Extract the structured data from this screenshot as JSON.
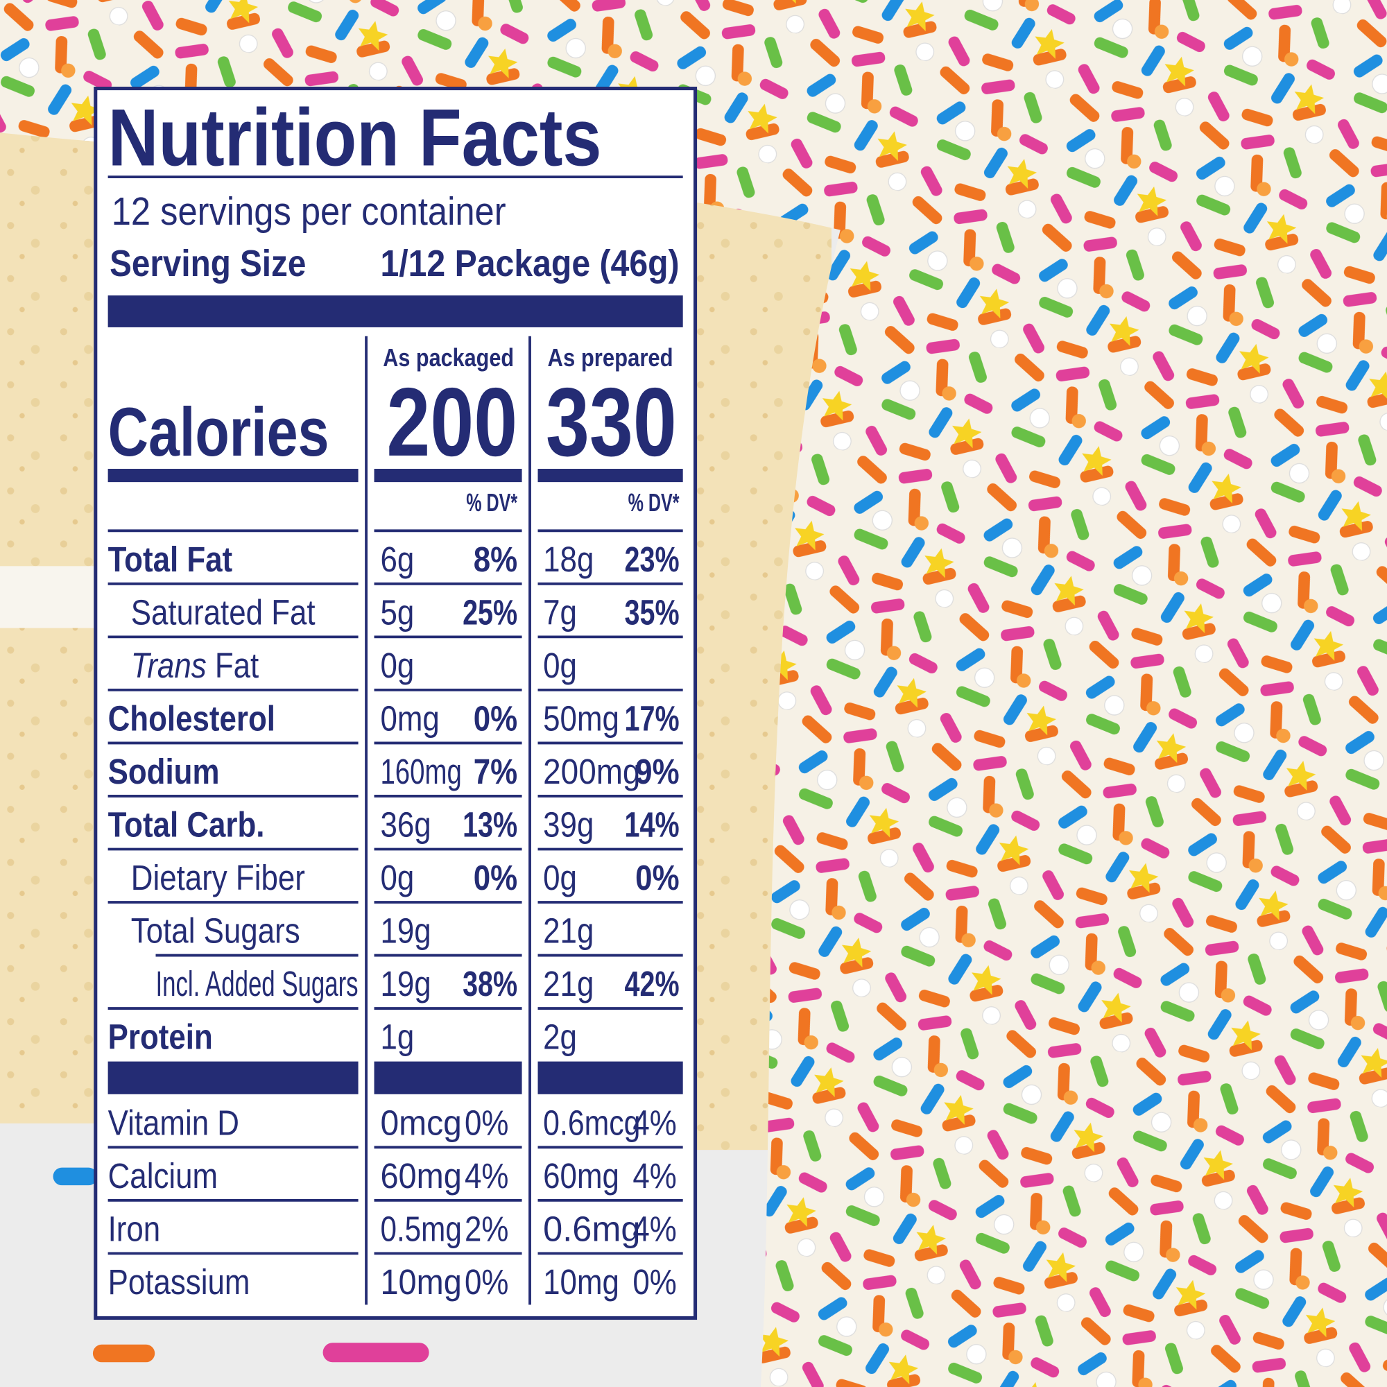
{
  "header": {
    "title": "Nutrition Facts",
    "servings": "12 servings per container",
    "serving_size_label": "Serving Size",
    "serving_size_value": "1/12 Package (46g)"
  },
  "calories": {
    "label": "Calories",
    "columns": [
      {
        "heading": "As packaged",
        "value": "200",
        "dv_heading": "% DV*"
      },
      {
        "heading": "As prepared",
        "value": "330",
        "dv_heading": "% DV*"
      }
    ]
  },
  "nutrients": [
    {
      "name": "Total Fat",
      "level": 0,
      "packaged": [
        "6g",
        "8%"
      ],
      "prepared": [
        "18g",
        "23%"
      ]
    },
    {
      "name": "Saturated Fat",
      "level": 1,
      "packaged": [
        "5g",
        "25%"
      ],
      "prepared": [
        "7g",
        "35%"
      ]
    },
    {
      "name_italic": "Trans",
      "name": "Fat",
      "level": 1,
      "packaged": [
        "0g"
      ],
      "prepared": [
        "0g"
      ]
    },
    {
      "name": "Cholesterol",
      "level": 0,
      "packaged": [
        "0mg",
        "0%"
      ],
      "prepared": [
        "50mg",
        "17%"
      ]
    },
    {
      "name": "Sodium",
      "level": 0,
      "packaged": [
        "160mg",
        "7%"
      ],
      "prepared": [
        "200mg",
        "9%"
      ]
    },
    {
      "name": "Total Carb.",
      "level": 0,
      "packaged": [
        "36g",
        "13%"
      ],
      "prepared": [
        "39g",
        "14%"
      ]
    },
    {
      "name": "Dietary Fiber",
      "level": 1,
      "packaged": [
        "0g",
        "0%"
      ],
      "prepared": [
        "0g",
        "0%"
      ]
    },
    {
      "name": "Total Sugars",
      "level": 1,
      "packaged": [
        "19g"
      ],
      "prepared": [
        "21g"
      ]
    },
    {
      "name": "Incl. Added Sugars",
      "level": 2,
      "packaged": [
        "19g",
        "38%"
      ],
      "prepared": [
        "21g",
        "42%"
      ]
    },
    {
      "name": "Protein",
      "level": 0,
      "packaged": [
        "1g"
      ],
      "prepared": [
        "2g"
      ]
    }
  ],
  "vitamins": [
    {
      "name": "Vitamin D",
      "packaged": [
        "0mcg",
        "0%"
      ],
      "prepared": [
        "0.6mcg",
        "4%"
      ]
    },
    {
      "name": "Calcium",
      "packaged": [
        "60mg",
        "4%"
      ],
      "prepared": [
        "60mg",
        "4%"
      ]
    },
    {
      "name": "Iron",
      "packaged": [
        "0.5mg",
        "2%"
      ],
      "prepared": [
        "0.6mg",
        "4%"
      ]
    },
    {
      "name": "Potassium",
      "packaged": [
        "10mg",
        "0%"
      ],
      "prepared": [
        "10mg",
        "0%"
      ]
    }
  ]
}
